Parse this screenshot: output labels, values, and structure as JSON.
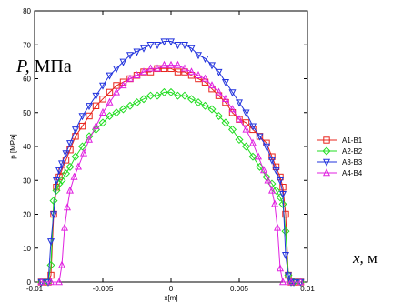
{
  "overlay": {
    "y_symbol": "P,",
    "y_unit": "МПа",
    "x_symbol": "x,",
    "x_unit": "м"
  },
  "chart_data": {
    "type": "line",
    "xlabel": "x[m]",
    "ylabel": "p [MPa]",
    "xlim": [
      -0.01,
      0.01
    ],
    "ylim": [
      0,
      80
    ],
    "xticks": [
      -0.01,
      -0.005,
      0,
      0.005,
      0.01
    ],
    "xtick_labels": [
      "-0.01",
      "-0.005",
      "0",
      "0.005",
      "0.01"
    ],
    "yticks": [
      0,
      10,
      20,
      30,
      40,
      50,
      60,
      70,
      80
    ],
    "ytick_labels": [
      "0",
      "10",
      "20",
      "30",
      "40",
      "50",
      "60",
      "70",
      "80"
    ],
    "grid": false,
    "legend_position": "right",
    "series": [
      {
        "name": "A1-B1",
        "color": "#e8241c",
        "marker": "square",
        "x": [
          -0.0095,
          -0.009,
          -0.0088,
          -0.0086,
          -0.0084,
          -0.0082,
          -0.008,
          -0.0077,
          -0.0074,
          -0.007,
          -0.0065,
          -0.006,
          -0.0055,
          -0.005,
          -0.0045,
          -0.004,
          -0.0035,
          -0.003,
          -0.0025,
          -0.002,
          -0.0015,
          -0.001,
          -0.0005,
          0,
          0.0005,
          0.001,
          0.0015,
          0.002,
          0.0025,
          0.003,
          0.0035,
          0.004,
          0.0045,
          0.005,
          0.0055,
          0.006,
          0.0065,
          0.007,
          0.0074,
          0.0077,
          0.008,
          0.0082,
          0.0084,
          0.0086,
          0.0088,
          0.009,
          0.0095
        ],
        "y": [
          0,
          0,
          2,
          20,
          28,
          31,
          33,
          36,
          39,
          43,
          46,
          49,
          52,
          54,
          56,
          58,
          59,
          60,
          61,
          62,
          62,
          63,
          63,
          63,
          62,
          62,
          61,
          60,
          59,
          57,
          55,
          53,
          50,
          48,
          47,
          45,
          43,
          41,
          37,
          34,
          31,
          28,
          20,
          2,
          0,
          0,
          0
        ]
      },
      {
        "name": "A2-B2",
        "color": "#22dd22",
        "marker": "diamond",
        "x": [
          -0.0095,
          -0.009,
          -0.0088,
          -0.0086,
          -0.0084,
          -0.0082,
          -0.008,
          -0.0077,
          -0.0074,
          -0.007,
          -0.0065,
          -0.006,
          -0.0055,
          -0.005,
          -0.0045,
          -0.004,
          -0.0035,
          -0.003,
          -0.0025,
          -0.002,
          -0.0015,
          -0.001,
          -0.0005,
          0,
          0.0005,
          0.001,
          0.0015,
          0.002,
          0.0025,
          0.003,
          0.0035,
          0.004,
          0.0045,
          0.005,
          0.0055,
          0.006,
          0.0065,
          0.007,
          0.0074,
          0.0077,
          0.008,
          0.0082,
          0.0084,
          0.0086,
          0.0088,
          0.009,
          0.0095
        ],
        "y": [
          0,
          0,
          5,
          24,
          27,
          29,
          30,
          32,
          34,
          37,
          40,
          43,
          45,
          47,
          49,
          50,
          51,
          52,
          53,
          54,
          55,
          55,
          56,
          56,
          55,
          55,
          54,
          53,
          52,
          51,
          49,
          47,
          45,
          42,
          40,
          37,
          34,
          31,
          29,
          27,
          25,
          23,
          15,
          2,
          0,
          0,
          0
        ]
      },
      {
        "name": "A3-B3",
        "color": "#2233dd",
        "marker": "triangle-down",
        "x": [
          -0.0095,
          -0.009,
          -0.0088,
          -0.0086,
          -0.0084,
          -0.0082,
          -0.008,
          -0.0077,
          -0.0074,
          -0.007,
          -0.0065,
          -0.006,
          -0.0055,
          -0.005,
          -0.0045,
          -0.004,
          -0.0035,
          -0.003,
          -0.0025,
          -0.002,
          -0.0015,
          -0.001,
          -0.0005,
          0,
          0.0005,
          0.001,
          0.0015,
          0.002,
          0.0025,
          0.003,
          0.0035,
          0.004,
          0.0045,
          0.005,
          0.0055,
          0.006,
          0.0065,
          0.007,
          0.0074,
          0.0077,
          0.008,
          0.0082,
          0.0084,
          0.0086,
          0.0088,
          0.009,
          0.0095
        ],
        "y": [
          0,
          0,
          12,
          20,
          30,
          33,
          35,
          38,
          41,
          45,
          49,
          52,
          55,
          58,
          61,
          63,
          65,
          67,
          68,
          69,
          70,
          70,
          71,
          71,
          70,
          70,
          69,
          67,
          66,
          64,
          62,
          59,
          56,
          53,
          50,
          46,
          43,
          40,
          36,
          33,
          30,
          26,
          8,
          2,
          0,
          0,
          0
        ]
      },
      {
        "name": "A4-B4",
        "color": "#e020e0",
        "marker": "triangle-up",
        "x": [
          -0.0095,
          -0.0088,
          -0.0082,
          -0.008,
          -0.0078,
          -0.0076,
          -0.0074,
          -0.0071,
          -0.0068,
          -0.0064,
          -0.006,
          -0.0055,
          -0.005,
          -0.0045,
          -0.004,
          -0.0035,
          -0.003,
          -0.0025,
          -0.002,
          -0.0015,
          -0.001,
          -0.0005,
          0,
          0.0005,
          0.001,
          0.0015,
          0.002,
          0.0025,
          0.003,
          0.0035,
          0.004,
          0.0045,
          0.005,
          0.0055,
          0.006,
          0.0064,
          0.0068,
          0.0071,
          0.0074,
          0.0076,
          0.0078,
          0.008,
          0.0082,
          0.0088,
          0.0095
        ],
        "y": [
          0,
          0,
          0,
          5,
          16,
          22,
          27,
          31,
          34,
          38,
          42,
          46,
          50,
          53,
          56,
          58,
          60,
          61,
          62,
          63,
          63,
          64,
          64,
          64,
          63,
          62,
          61,
          60,
          58,
          56,
          54,
          51,
          48,
          45,
          41,
          37,
          33,
          30,
          27,
          23,
          16,
          4,
          0,
          0,
          0
        ]
      }
    ]
  }
}
